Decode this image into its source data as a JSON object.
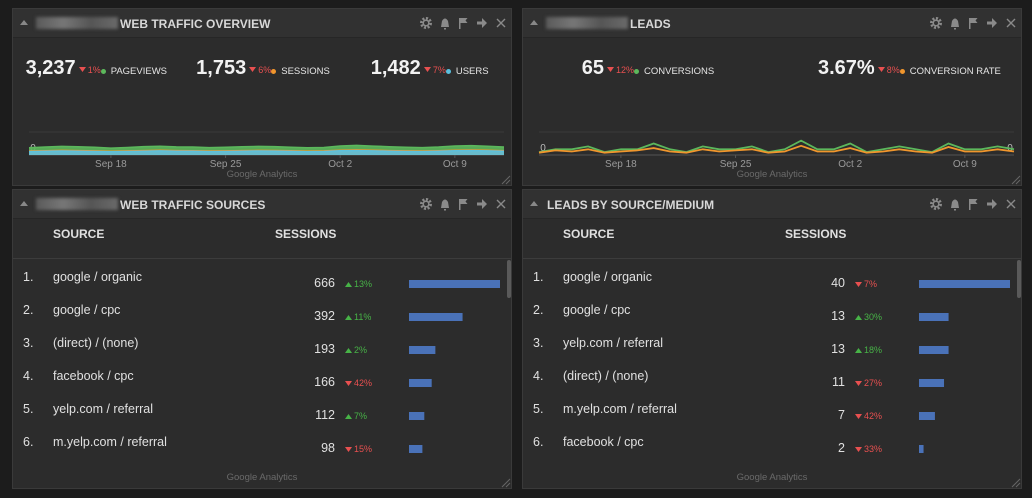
{
  "panels": [
    {
      "title": "WEB TRAFFIC OVERVIEW",
      "redacted": true,
      "metrics": [
        {
          "value": "3,237",
          "change": "1%",
          "direction": "down",
          "label": "PAGEVIEWS",
          "color": "#5cb85c"
        },
        {
          "value": "1,753",
          "change": "6%",
          "direction": "down",
          "label": "SESSIONS",
          "color": "#f0962d"
        },
        {
          "value": "1,482",
          "change": "7%",
          "direction": "down",
          "label": "USERS",
          "color": "#5bc0de"
        }
      ],
      "chart": {
        "type": "area",
        "xlim": [
          0,
          29
        ],
        "ylim": [
          0,
          300
        ],
        "yticks": [
          0
        ],
        "xticks": [
          {
            "value": 5,
            "label": "Sep 18"
          },
          {
            "value": 12,
            "label": "Sep 25"
          },
          {
            "value": 19,
            "label": "Oct 2"
          },
          {
            "value": 26,
            "label": "Oct 9"
          }
        ],
        "series": [
          {
            "name": "PAGEVIEWS",
            "color": "#5cb85c",
            "values": [
              95,
              105,
              112,
              108,
              100,
              90,
              98,
              110,
              115,
              106,
              104,
              96,
              100,
              108,
              112,
              110,
              102,
              94,
              98,
              118,
              125,
              116,
              108,
              100,
              96,
              104,
              118,
              122,
              114,
              104
            ]
          },
          {
            "name": "SESSIONS",
            "color": "#f0962d",
            "values": [
              52,
              56,
              60,
              58,
              54,
              50,
              53,
              58,
              62,
              57,
              56,
              52,
              54,
              58,
              60,
              59,
              55,
              51,
              53,
              63,
              66,
              62,
              58,
              54,
              52,
              56,
              63,
              65,
              61,
              56
            ]
          },
          {
            "name": "USERS",
            "color": "#5bc0de",
            "values": [
              44,
              48,
              52,
              50,
              46,
              42,
              45,
              50,
              54,
              49,
              48,
              44,
              46,
              50,
              52,
              51,
              47,
              43,
              45,
              55,
              58,
              54,
              50,
              46,
              44,
              48,
              55,
              57,
              53,
              48
            ]
          }
        ]
      },
      "footer": "Google Analytics"
    },
    {
      "title": "LEADS",
      "redacted": true,
      "metrics": [
        {
          "value": "65",
          "change": "12%",
          "direction": "down",
          "label": "CONVERSIONS",
          "color": "#5cb85c"
        },
        {
          "value": "3.67%",
          "change": "8%",
          "direction": "down",
          "label": "CONVERSION RATE",
          "color": "#f0962d"
        }
      ],
      "chart": {
        "type": "line",
        "xlim": [
          0,
          29
        ],
        "ylim": [
          0,
          8
        ],
        "yticks": [
          0
        ],
        "y2lim": [
          0,
          20
        ],
        "y2ticks": [
          0
        ],
        "xticks": [
          {
            "value": 5,
            "label": "Sep 18"
          },
          {
            "value": 12,
            "label": "Sep 25"
          },
          {
            "value": 19,
            "label": "Oct 2"
          },
          {
            "value": 26,
            "label": "Oct 9"
          }
        ],
        "series": [
          {
            "name": "CONVERSIONS",
            "color": "#5cb85c",
            "values": [
              1,
              2,
              2,
              3,
              1,
              2,
              2,
              4,
              2,
              1,
              3,
              2,
              2,
              3,
              1,
              2,
              5,
              2,
              2,
              4,
              1,
              2,
              3,
              2,
              1,
              4,
              2,
              2,
              3,
              2
            ]
          },
          {
            "name": "CONVERSION RATE",
            "color": "#f0962d",
            "axis": "y2",
            "values": [
              2,
              4,
              3,
              5,
              2,
              3,
              4,
              6,
              3,
              2,
              5,
              3,
              4,
              5,
              2,
              3,
              8,
              3,
              3,
              6,
              2,
              3,
              5,
              3,
              2,
              7,
              3,
              3,
              5,
              3
            ]
          }
        ]
      },
      "footer": "Google Analytics"
    },
    {
      "title": "WEB TRAFFIC SOURCES",
      "redacted": true,
      "columns": [
        "SOURCE",
        "SESSIONS"
      ],
      "rows": [
        {
          "rank": "1.",
          "source": "google / organic",
          "sessions": 666,
          "change": "13%",
          "direction": "up"
        },
        {
          "rank": "2.",
          "source": "google / cpc",
          "sessions": 392,
          "change": "11%",
          "direction": "up"
        },
        {
          "rank": "3.",
          "source": "(direct) / (none)",
          "sessions": 193,
          "change": "2%",
          "direction": "up"
        },
        {
          "rank": "4.",
          "source": "facebook / cpc",
          "sessions": 166,
          "change": "42%",
          "direction": "down"
        },
        {
          "rank": "5.",
          "source": "yelp.com / referral",
          "sessions": 112,
          "change": "7%",
          "direction": "up"
        },
        {
          "rank": "6.",
          "source": "m.yelp.com / referral",
          "sessions": 98,
          "change": "15%",
          "direction": "down"
        }
      ],
      "footer": "Google Analytics"
    },
    {
      "title": "LEADS BY SOURCE/MEDIUM",
      "redacted": false,
      "columns": [
        "SOURCE",
        "SESSIONS"
      ],
      "rows": [
        {
          "rank": "1.",
          "source": "google / organic",
          "sessions": 40,
          "change": "7%",
          "direction": "down"
        },
        {
          "rank": "2.",
          "source": "google / cpc",
          "sessions": 13,
          "change": "30%",
          "direction": "up"
        },
        {
          "rank": "3.",
          "source": "yelp.com / referral",
          "sessions": 13,
          "change": "18%",
          "direction": "up"
        },
        {
          "rank": "4.",
          "source": "(direct) / (none)",
          "sessions": 11,
          "change": "27%",
          "direction": "down"
        },
        {
          "rank": "5.",
          "source": "m.yelp.com / referral",
          "sessions": 7,
          "change": "42%",
          "direction": "down"
        },
        {
          "rank": "6.",
          "source": "facebook / cpc",
          "sessions": 2,
          "change": "33%",
          "direction": "down"
        }
      ],
      "footer": "Google Analytics"
    }
  ]
}
